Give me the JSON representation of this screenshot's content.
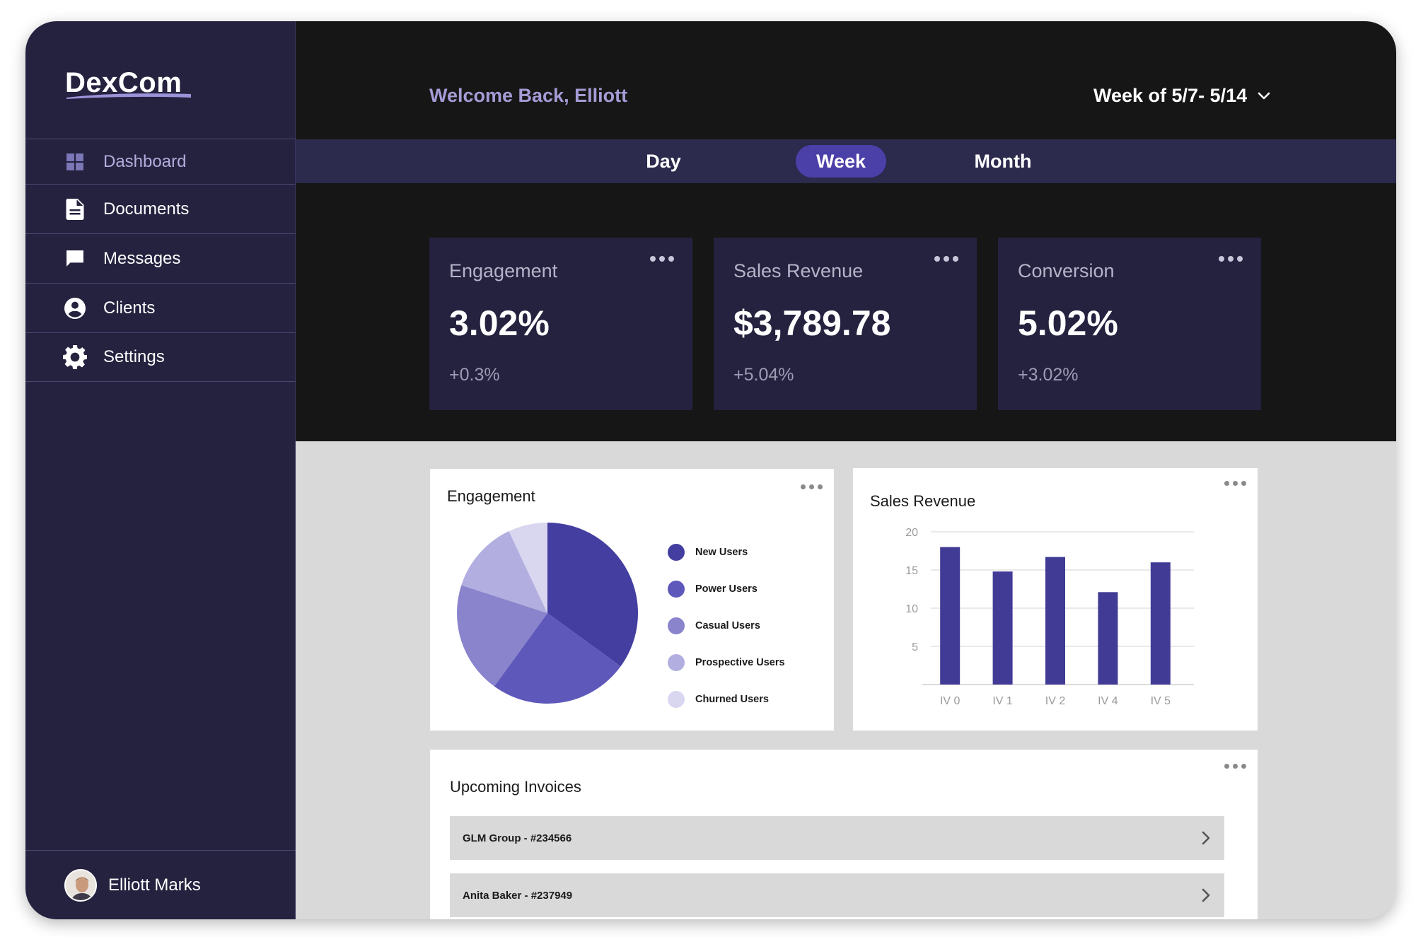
{
  "brand": {
    "name": "DexCom"
  },
  "sidebar": {
    "items": [
      {
        "label": "Dashboard",
        "icon": "dashboard-icon",
        "active": true
      },
      {
        "label": "Documents",
        "icon": "document-icon"
      },
      {
        "label": "Messages",
        "icon": "message-icon"
      },
      {
        "label": "Clients",
        "icon": "user-circle-icon"
      },
      {
        "label": "Settings",
        "icon": "gear-icon"
      }
    ],
    "profile": {
      "name": "Elliott Marks"
    }
  },
  "header": {
    "welcome": "Welcome Back, Elliott",
    "week_range": "Week of 5/7- 5/14"
  },
  "tabs": [
    {
      "label": "Day"
    },
    {
      "label": "Week",
      "active": true
    },
    {
      "label": "Month"
    }
  ],
  "stats": [
    {
      "label": "Engagement",
      "value": "3.02%",
      "change": "+0.3%"
    },
    {
      "label": "Sales Revenue",
      "value": "$3,789.78",
      "change": "+5.04%"
    },
    {
      "label": "Conversion",
      "value": "5.02%",
      "change": "+3.02%"
    }
  ],
  "engagement_card": {
    "title": "Engagement"
  },
  "revenue_card": {
    "title": "Sales Revenue"
  },
  "invoices": {
    "title": "Upcoming Invoices",
    "rows": [
      {
        "label": "GLM Group - #234566"
      },
      {
        "label": "Anita Baker - #237949"
      }
    ]
  },
  "colors": {
    "sidebar_bg": "#24223f",
    "accent": "#4b3fa8",
    "bar": "#413b96"
  },
  "chart_data": [
    {
      "type": "pie",
      "title": "Engagement",
      "slices": [
        {
          "name": "New Users",
          "value": 35,
          "color": "#433e9f"
        },
        {
          "name": "Power Users",
          "value": 25,
          "color": "#5f58bb"
        },
        {
          "name": "Casual Users",
          "value": 20,
          "color": "#8a84cd"
        },
        {
          "name": "Prospective Users",
          "value": 13,
          "color": "#b2aee0"
        },
        {
          "name": "Churned Users",
          "value": 7,
          "color": "#d9d6f0"
        }
      ]
    },
    {
      "type": "bar",
      "title": "Sales Revenue",
      "categories": [
        "IV 0",
        "IV 1",
        "IV 2",
        "IV 4",
        "IV 5"
      ],
      "values": [
        18,
        14.8,
        16.7,
        12.1,
        16
      ],
      "yticks": [
        5,
        10,
        15,
        20
      ],
      "ylim": [
        0,
        20
      ],
      "grid": true
    }
  ]
}
